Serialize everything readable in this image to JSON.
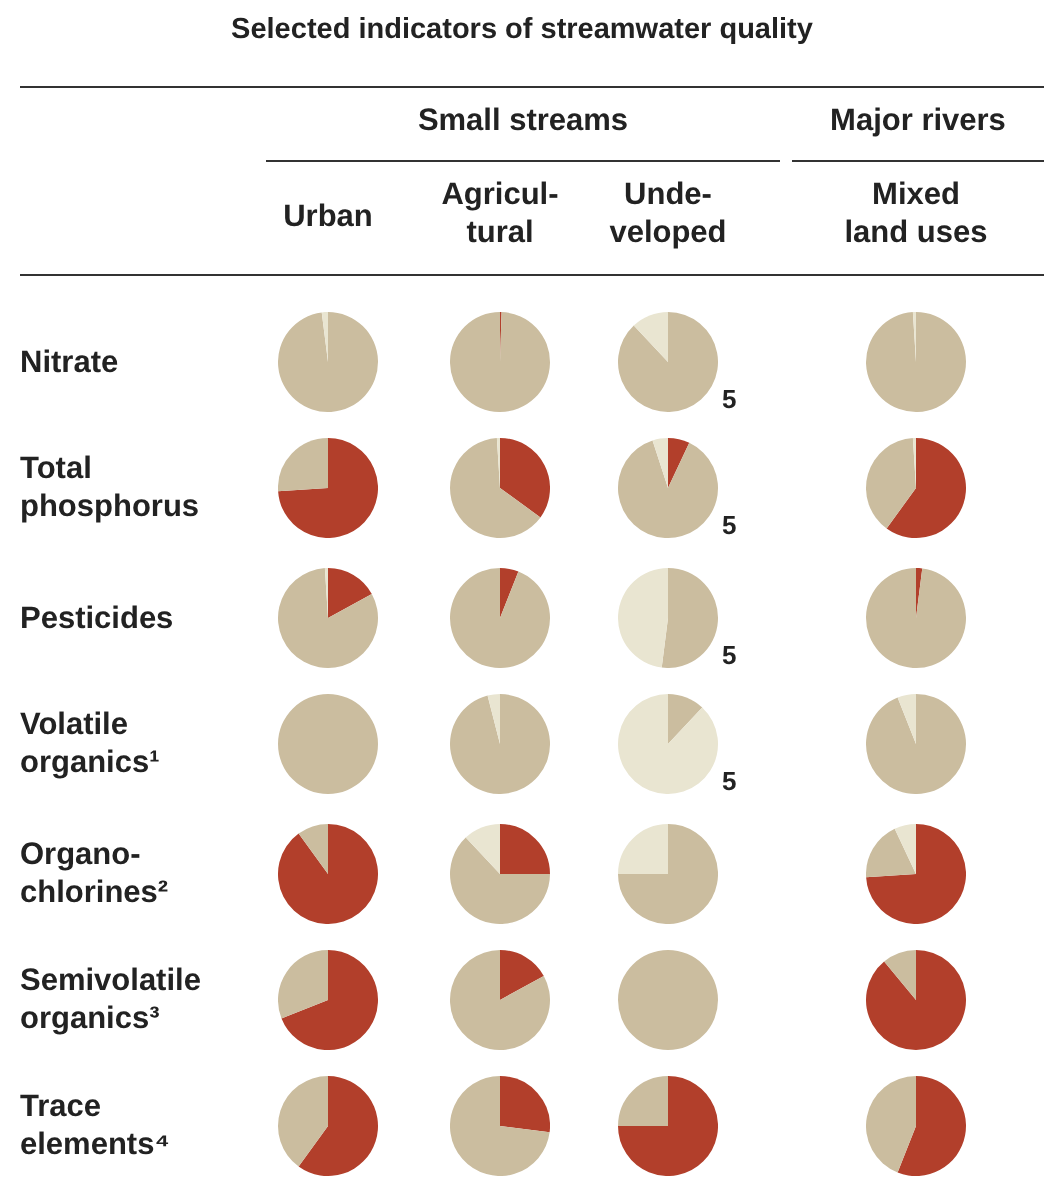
{
  "chart_data": [
    {
      "type": "other",
      "title": "Selected indicators of streamwater quality",
      "annotations": [
        "Small streams",
        "Major rivers",
        "Urban",
        "Agricul-\ntural",
        "Unde-\nveloped",
        "Mixed\nland uses",
        "Nitrate",
        "Total\nphosphorus",
        "Pesticides",
        "Volatile\norganics¹",
        "Organo-\nchlorines²",
        "Semivolatile\norganics³",
        "Trace\nelements⁴"
      ]
    },
    {
      "type": "pie",
      "categories": [
        null,
        null,
        null
      ],
      "values": [
        0,
        98,
        2
      ],
      "colors": [
        "#b23f2b",
        "#cbbd9f",
        "#e9e5d1"
      ]
    },
    {
      "type": "pie",
      "categories": [
        null,
        null,
        null
      ],
      "values": [
        0.5,
        99.5,
        0
      ],
      "colors": [
        "#b23f2b",
        "#cbbd9f",
        "#e9e5d1"
      ]
    },
    {
      "type": "pie",
      "categories": [
        null,
        null,
        null
      ],
      "values": [
        0,
        88,
        12
      ],
      "colors": [
        "#b23f2b",
        "#cbbd9f",
        "#e9e5d1"
      ],
      "annotations": [
        "5"
      ]
    },
    {
      "type": "pie",
      "categories": [
        null,
        null,
        null
      ],
      "values": [
        0,
        99,
        1
      ],
      "colors": [
        "#b23f2b",
        "#cbbd9f",
        "#e9e5d1"
      ]
    },
    {
      "type": "pie",
      "categories": [
        null,
        null,
        null
      ],
      "values": [
        74,
        26,
        0
      ],
      "colors": [
        "#b23f2b",
        "#cbbd9f",
        "#e9e5d1"
      ]
    },
    {
      "type": "pie",
      "categories": [
        null,
        null,
        null
      ],
      "values": [
        35,
        64,
        1
      ],
      "colors": [
        "#b23f2b",
        "#cbbd9f",
        "#e9e5d1"
      ]
    },
    {
      "type": "pie",
      "categories": [
        null,
        null,
        null
      ],
      "values": [
        7,
        88,
        5
      ],
      "colors": [
        "#b23f2b",
        "#cbbd9f",
        "#e9e5d1"
      ],
      "annotations": [
        "5"
      ]
    },
    {
      "type": "pie",
      "categories": [
        null,
        null,
        null
      ],
      "values": [
        60,
        39,
        1
      ],
      "colors": [
        "#b23f2b",
        "#cbbd9f",
        "#e9e5d1"
      ]
    },
    {
      "type": "pie",
      "categories": [
        null,
        null,
        null
      ],
      "values": [
        17,
        82,
        1
      ],
      "colors": [
        "#b23f2b",
        "#cbbd9f",
        "#e9e5d1"
      ]
    },
    {
      "type": "pie",
      "categories": [
        null,
        null,
        null
      ],
      "values": [
        6,
        94,
        0
      ],
      "colors": [
        "#b23f2b",
        "#cbbd9f",
        "#e9e5d1"
      ]
    },
    {
      "type": "pie",
      "categories": [
        null,
        null,
        null
      ],
      "values": [
        0,
        52,
        48
      ],
      "colors": [
        "#b23f2b",
        "#cbbd9f",
        "#e9e5d1"
      ],
      "annotations": [
        "5"
      ]
    },
    {
      "type": "pie",
      "categories": [
        null,
        null,
        null
      ],
      "values": [
        2,
        98,
        0
      ],
      "colors": [
        "#b23f2b",
        "#cbbd9f",
        "#e9e5d1"
      ]
    },
    {
      "type": "pie",
      "categories": [
        null,
        null,
        null
      ],
      "values": [
        0,
        100,
        0
      ],
      "colors": [
        "#b23f2b",
        "#cbbd9f",
        "#e9e5d1"
      ]
    },
    {
      "type": "pie",
      "categories": [
        null,
        null,
        null
      ],
      "values": [
        0,
        96,
        4
      ],
      "colors": [
        "#b23f2b",
        "#cbbd9f",
        "#e9e5d1"
      ]
    },
    {
      "type": "pie",
      "categories": [
        null,
        null,
        null
      ],
      "values": [
        0,
        12,
        88
      ],
      "colors": [
        "#b23f2b",
        "#cbbd9f",
        "#e9e5d1"
      ],
      "annotations": [
        "5"
      ]
    },
    {
      "type": "pie",
      "categories": [
        null,
        null,
        null
      ],
      "values": [
        0,
        94,
        6
      ],
      "colors": [
        "#b23f2b",
        "#cbbd9f",
        "#e9e5d1"
      ]
    },
    {
      "type": "pie",
      "categories": [
        null,
        null,
        null
      ],
      "values": [
        90,
        10,
        0
      ],
      "colors": [
        "#b23f2b",
        "#cbbd9f",
        "#e9e5d1"
      ]
    },
    {
      "type": "pie",
      "categories": [
        null,
        null,
        null
      ],
      "values": [
        25,
        63,
        12
      ],
      "colors": [
        "#b23f2b",
        "#cbbd9f",
        "#e9e5d1"
      ]
    },
    {
      "type": "pie",
      "categories": [
        null,
        null,
        null
      ],
      "values": [
        0,
        75,
        25
      ],
      "colors": [
        "#b23f2b",
        "#cbbd9f",
        "#e9e5d1"
      ]
    },
    {
      "type": "pie",
      "categories": [
        null,
        null,
        null
      ],
      "values": [
        74,
        19,
        7
      ],
      "colors": [
        "#b23f2b",
        "#cbbd9f",
        "#e9e5d1"
      ]
    },
    {
      "type": "pie",
      "categories": [
        null,
        null,
        null
      ],
      "values": [
        69,
        31,
        0
      ],
      "colors": [
        "#b23f2b",
        "#cbbd9f",
        "#e9e5d1"
      ]
    },
    {
      "type": "pie",
      "categories": [
        null,
        null,
        null
      ],
      "values": [
        17,
        83,
        0
      ],
      "colors": [
        "#b23f2b",
        "#cbbd9f",
        "#e9e5d1"
      ]
    },
    {
      "type": "pie",
      "categories": [
        null,
        null,
        null
      ],
      "values": [
        0,
        100,
        0
      ],
      "colors": [
        "#b23f2b",
        "#cbbd9f",
        "#e9e5d1"
      ]
    },
    {
      "type": "pie",
      "categories": [
        null,
        null,
        null
      ],
      "values": [
        89,
        11,
        0
      ],
      "colors": [
        "#b23f2b",
        "#cbbd9f",
        "#e9e5d1"
      ]
    },
    {
      "type": "pie",
      "categories": [
        null,
        null,
        null
      ],
      "values": [
        60,
        40,
        0
      ],
      "colors": [
        "#b23f2b",
        "#cbbd9f",
        "#e9e5d1"
      ]
    },
    {
      "type": "pie",
      "categories": [
        null,
        null,
        null
      ],
      "values": [
        27,
        73,
        0
      ],
      "colors": [
        "#b23f2b",
        "#cbbd9f",
        "#e9e5d1"
      ]
    },
    {
      "type": "pie",
      "categories": [
        null,
        null,
        null
      ],
      "values": [
        75,
        25,
        0
      ],
      "colors": [
        "#b23f2b",
        "#cbbd9f",
        "#e9e5d1"
      ]
    },
    {
      "type": "pie",
      "categories": [
        null,
        null,
        null
      ],
      "values": [
        56,
        44,
        0
      ],
      "colors": [
        "#b23f2b",
        "#cbbd9f",
        "#e9e5d1"
      ]
    }
  ]
}
